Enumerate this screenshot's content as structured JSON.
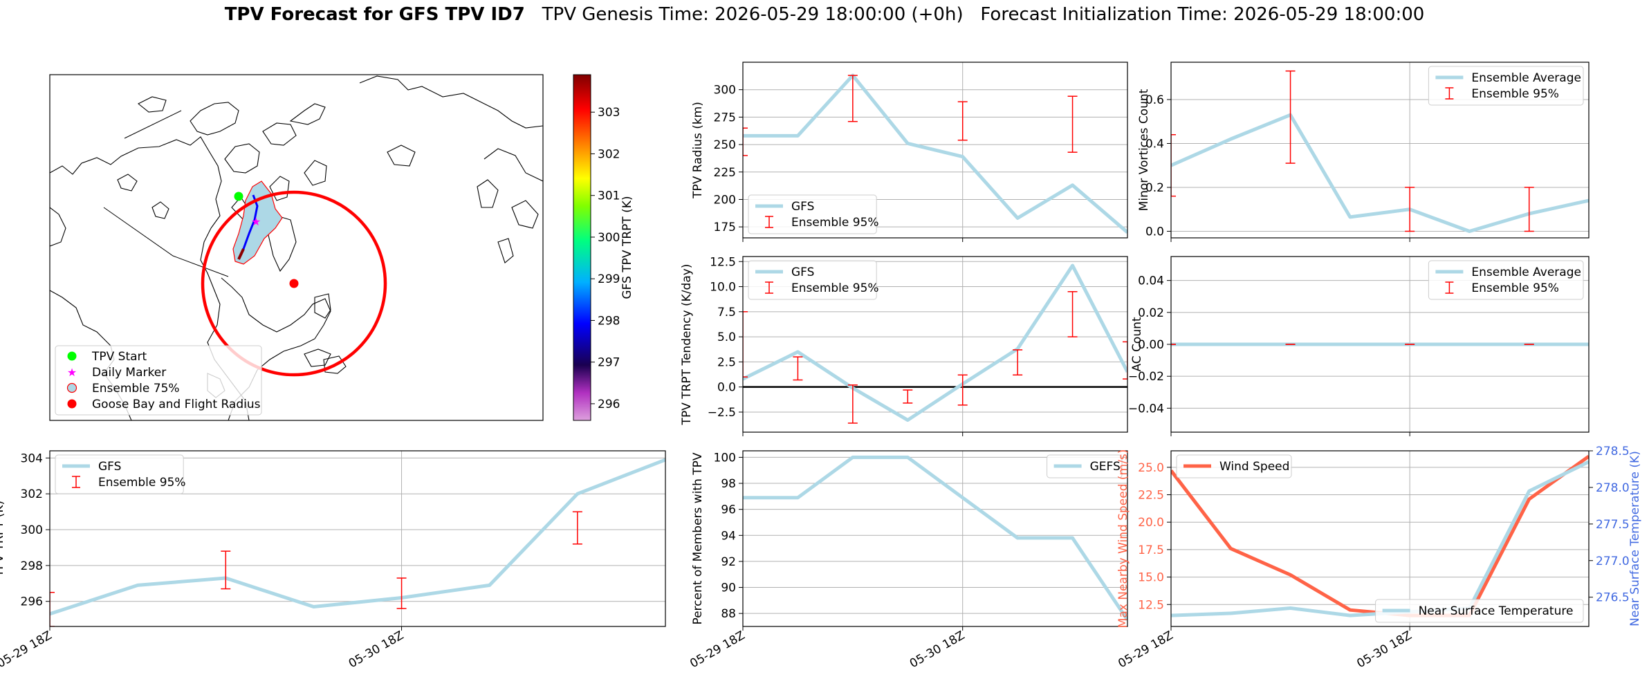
{
  "header": {
    "title_bold": "TPV Forecast for GFS TPV ID7",
    "genesis": "TPV Genesis Time: 2026-05-29 18:00:00 (+0h)",
    "init": "Forecast Initialization Time: 2026-05-29 18:00:00"
  },
  "colors": {
    "ensemble_line": "#add8e6",
    "error_bar": "#ff0000",
    "wind": "#ff6347",
    "temp_axis": "#4169e1",
    "radius_circle": "#ff0000",
    "start_marker": "#00ff00",
    "daily_marker": "#ff00ff"
  },
  "map": {
    "colorbar_label": "GFS TPV TRPT (K)",
    "colorbar_ticks": [
      "296",
      "297",
      "298",
      "299",
      "300",
      "301",
      "302",
      "303"
    ],
    "colorbar_range": [
      295.6,
      303.9
    ],
    "legend": [
      "TPV Start",
      "Daily Marker",
      "Ensemble 75%",
      "Goose Bay and Flight Radius"
    ]
  },
  "time_ticks": [
    "05-29 18Z",
    "05-30 18Z"
  ],
  "chart_data": [
    {
      "id": "radius",
      "type": "line",
      "ylabel": "TPV Radius (km)",
      "ylim": [
        165,
        325
      ],
      "yticks": [
        175,
        200,
        225,
        250,
        275,
        300
      ],
      "x": [
        0,
        1,
        2,
        3,
        4,
        5,
        6,
        7
      ],
      "series": [
        {
          "name": "GFS",
          "values": [
            258,
            258,
            313,
            251,
            239,
            183,
            213,
            170
          ]
        }
      ],
      "error_bars": {
        "name": "Ensemble 95%",
        "x": [
          0,
          2,
          4,
          6
        ],
        "low": [
          240,
          271,
          254,
          243
        ],
        "high": [
          265,
          313,
          289,
          294
        ]
      },
      "legend": [
        "GFS",
        "Ensemble 95%"
      ],
      "legend_loc": "lower left",
      "grid": true
    },
    {
      "id": "minor",
      "type": "line",
      "ylabel": "Minor Vortices Count",
      "ylim": [
        -0.03,
        0.77
      ],
      "yticks": [
        "0.0",
        "0.2",
        "0.4",
        "0.6"
      ],
      "x": [
        0,
        1,
        2,
        3,
        4,
        5,
        6,
        7
      ],
      "series": [
        {
          "name": "Ensemble Average",
          "values": [
            0.3,
            0.42,
            0.53,
            0.065,
            0.1,
            0.0,
            0.08,
            0.14
          ]
        }
      ],
      "error_bars": {
        "name": "Ensemble 95%",
        "x": [
          0,
          2,
          4,
          6
        ],
        "low": [
          0.16,
          0.31,
          0.0,
          0.0
        ],
        "high": [
          0.44,
          0.73,
          0.2,
          0.2
        ]
      },
      "legend": [
        "Ensemble Average",
        "Ensemble 95%"
      ],
      "legend_loc": "upper right",
      "grid": true
    },
    {
      "id": "tendency",
      "type": "line",
      "ylabel": "TPV TRPT Tendency (K/day)",
      "ylim": [
        -4.5,
        13
      ],
      "yticks": [
        "−2.5",
        "0.0",
        "2.5",
        "5.0",
        "7.5",
        "10.0",
        "12.5"
      ],
      "ytick_values": [
        -2.5,
        0,
        2.5,
        5,
        7.5,
        10,
        12.5
      ],
      "x": [
        0,
        1,
        2,
        3,
        4,
        5,
        6,
        7
      ],
      "series": [
        {
          "name": "GFS",
          "values": [
            0.8,
            3.5,
            -0.1,
            -3.3,
            0.3,
            3.8,
            12.1,
            1.5
          ]
        }
      ],
      "error_bars": {
        "name": "Ensemble 95%",
        "x": [
          0,
          1,
          2,
          3,
          4,
          5,
          6,
          7
        ],
        "low": [
          1.0,
          0.7,
          -3.6,
          -1.6,
          -1.8,
          1.2,
          5.0,
          0.8
        ],
        "high": [
          7.5,
          3.0,
          0.2,
          -0.3,
          1.2,
          3.7,
          9.5,
          4.5
        ]
      },
      "zero_line": true,
      "legend": [
        "GFS",
        "Ensemble 95%"
      ],
      "legend_loc": "upper left",
      "grid": true
    },
    {
      "id": "ac",
      "type": "line",
      "ylabel": "AC Count",
      "ylim": [
        -0.055,
        0.055
      ],
      "yticks": [
        "−0.04",
        "−0.02",
        "0.00",
        "0.02",
        "0.04"
      ],
      "ytick_values": [
        -0.04,
        -0.02,
        0,
        0.02,
        0.04
      ],
      "x": [
        0,
        1,
        2,
        3,
        4,
        5,
        6,
        7
      ],
      "series": [
        {
          "name": "Ensemble Average",
          "values": [
            0,
            0,
            0,
            0,
            0,
            0,
            0,
            0
          ]
        }
      ],
      "error_bars": {
        "name": "Ensemble 95%",
        "x": [
          0,
          2,
          4,
          6
        ],
        "low": [
          0,
          0,
          0,
          0
        ],
        "high": [
          0,
          0,
          0,
          0
        ]
      },
      "legend": [
        "Ensemble Average",
        "Ensemble 95%"
      ],
      "legend_loc": "upper right",
      "grid": true
    },
    {
      "id": "trpt",
      "type": "line",
      "ylabel": "TPV TRPT (K)",
      "ylim": [
        294.6,
        304.4
      ],
      "yticks": [
        296,
        298,
        300,
        302,
        304
      ],
      "x": [
        0,
        1,
        2,
        3,
        4,
        5,
        6,
        7
      ],
      "series": [
        {
          "name": "GFS",
          "values": [
            295.3,
            296.9,
            297.3,
            295.7,
            296.2,
            296.9,
            302.0,
            303.9
          ]
        }
      ],
      "error_bars": {
        "name": "Ensemble 95%",
        "x": [
          0,
          2,
          4,
          6
        ],
        "low": [
          294.6,
          296.7,
          295.6,
          299.2
        ],
        "high": [
          296.5,
          298.8,
          297.3,
          301.0
        ]
      },
      "legend": [
        "GFS",
        "Ensemble 95%"
      ],
      "legend_loc": "upper left",
      "grid": true
    },
    {
      "id": "members",
      "type": "line",
      "ylabel": "Percent of Members with TPV",
      "ylim": [
        87,
        100.5
      ],
      "yticks": [
        88,
        90,
        92,
        94,
        96,
        98,
        100
      ],
      "x": [
        0,
        1,
        2,
        3,
        4,
        5,
        6,
        7
      ],
      "series": [
        {
          "name": "GEFS",
          "values": [
            96.9,
            96.9,
            100,
            100,
            96.9,
            93.8,
            93.8,
            87.5
          ]
        }
      ],
      "legend": [
        "GEFS"
      ],
      "legend_loc": "upper right",
      "grid": true
    },
    {
      "id": "wind_temp",
      "type": "line",
      "ylabel": "Max Nearby Wind Speed (m/s)",
      "ylabel_right": "Near Surface Temperature (K)",
      "ylim": [
        10.5,
        26.5
      ],
      "yticks": [
        "12.5",
        "15.0",
        "17.5",
        "20.0",
        "22.5",
        "25.0"
      ],
      "ytick_values": [
        12.5,
        15,
        17.5,
        20,
        22.5,
        25
      ],
      "ylim_right": [
        276.1,
        278.5
      ],
      "yticks_right": [
        "276.5",
        "277.0",
        "277.5",
        "278.0",
        "278.5"
      ],
      "ytick_right_values": [
        276.5,
        277.0,
        277.5,
        278.0,
        278.5
      ],
      "x": [
        0,
        1,
        2,
        3,
        4,
        5,
        6,
        7
      ],
      "series": [
        {
          "name": "Wind Speed",
          "axis": "left",
          "values": [
            24.7,
            17.6,
            15.2,
            12.0,
            11.5,
            11.5,
            22.1,
            26.0
          ]
        },
        {
          "name": "Near Surface Temperature",
          "axis": "right",
          "values": [
            276.25,
            276.28,
            276.35,
            276.25,
            276.3,
            276.35,
            277.95,
            278.35
          ]
        }
      ],
      "legend": [
        "Wind Speed",
        "Near Surface Temperature"
      ],
      "grid": true
    }
  ]
}
